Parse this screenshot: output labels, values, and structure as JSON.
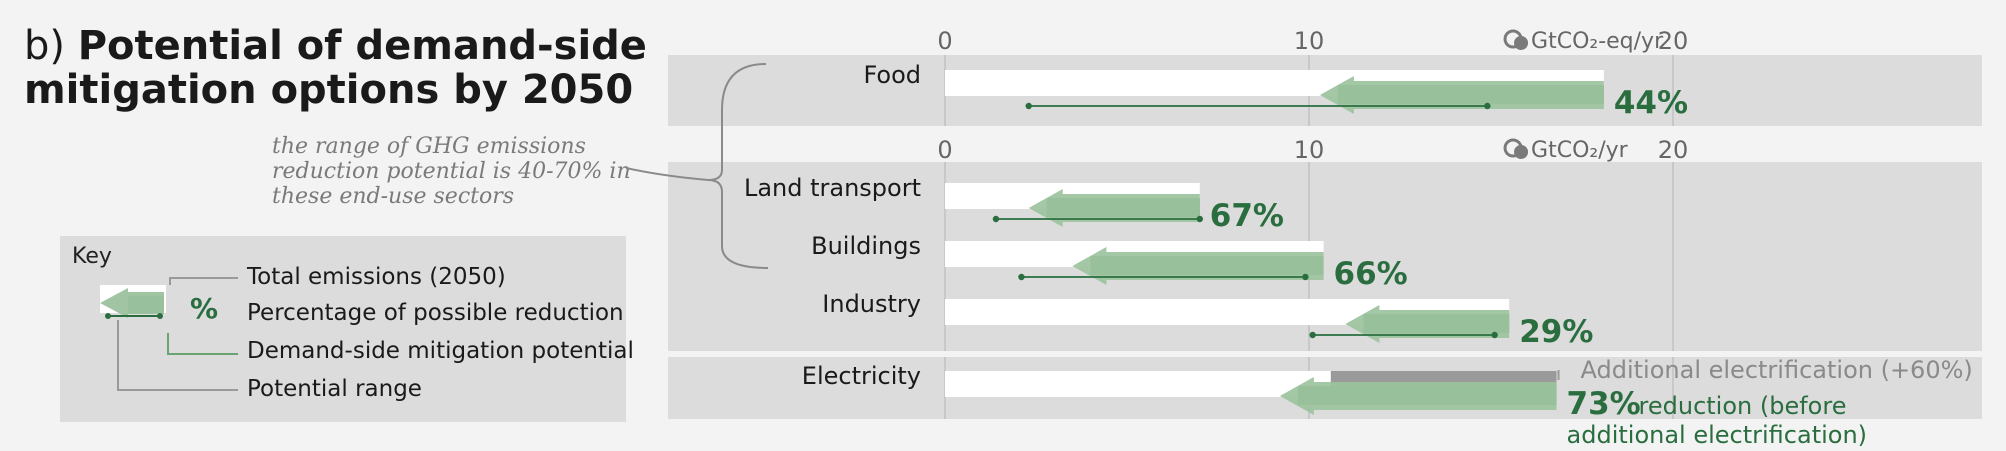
{
  "title": {
    "prefix": "b)",
    "text": "Potential of demand-side mitigation options by 2050"
  },
  "annotation": "the range of GHG emissions reduction potential is 40-70% in these end-use sectors",
  "key": {
    "title": "Key",
    "symbol_pct": "%",
    "items": [
      "Total emissions (2050)",
      "Percentage of possible reduction",
      "Demand-side mitigation potential",
      "Potential range"
    ]
  },
  "colors": {
    "panel": "#dcdcdd",
    "total": "#ffffff",
    "mitigation_light": "#9cc29e",
    "mitigation_dark": "#6aa272",
    "range_line": "#2a6e3f",
    "pct_text": "#2a6e3f",
    "electrification": "#9a9a9a"
  },
  "chart_data": {
    "type": "bar",
    "panels": [
      {
        "unit": "GtCO₂-eq/yr",
        "xlim": [
          0,
          29
        ],
        "ticks": [
          0,
          10,
          20
        ],
        "sectors": [
          {
            "name": "Food",
            "total": 18.1,
            "mitigation_upper": 10.3,
            "range": [
              2.3,
              14.9
            ],
            "pct": "44%"
          }
        ]
      },
      {
        "unit": "GtCO₂/yr",
        "xlim": [
          0,
          29
        ],
        "ticks": [
          0,
          10,
          20
        ],
        "sectors": [
          {
            "name": "Land transport",
            "total": 7.0,
            "mitigation_upper": 2.3,
            "range": [
              1.4,
              7.0
            ],
            "pct": "67%"
          },
          {
            "name": "Buildings",
            "total": 10.4,
            "mitigation_upper": 3.5,
            "range": [
              2.1,
              9.9
            ],
            "pct": "66%"
          },
          {
            "name": "Industry",
            "total": 15.5,
            "mitigation_upper": 11.0,
            "range": [
              10.1,
              15.1
            ],
            "pct": "29%"
          }
        ]
      },
      {
        "unit": "",
        "xlim": [
          0,
          29
        ],
        "ticks": [],
        "sectors": [
          {
            "name": "Electricity",
            "total": 10.6,
            "additional_electrification_upper": 16.8,
            "mitigation_upper": 9.2,
            "pct": "73%",
            "pct_label": "reduction (before",
            "pct_label_2": "additional electrification)",
            "additional_label": "Additional electrification (+60%)"
          }
        ]
      }
    ]
  }
}
